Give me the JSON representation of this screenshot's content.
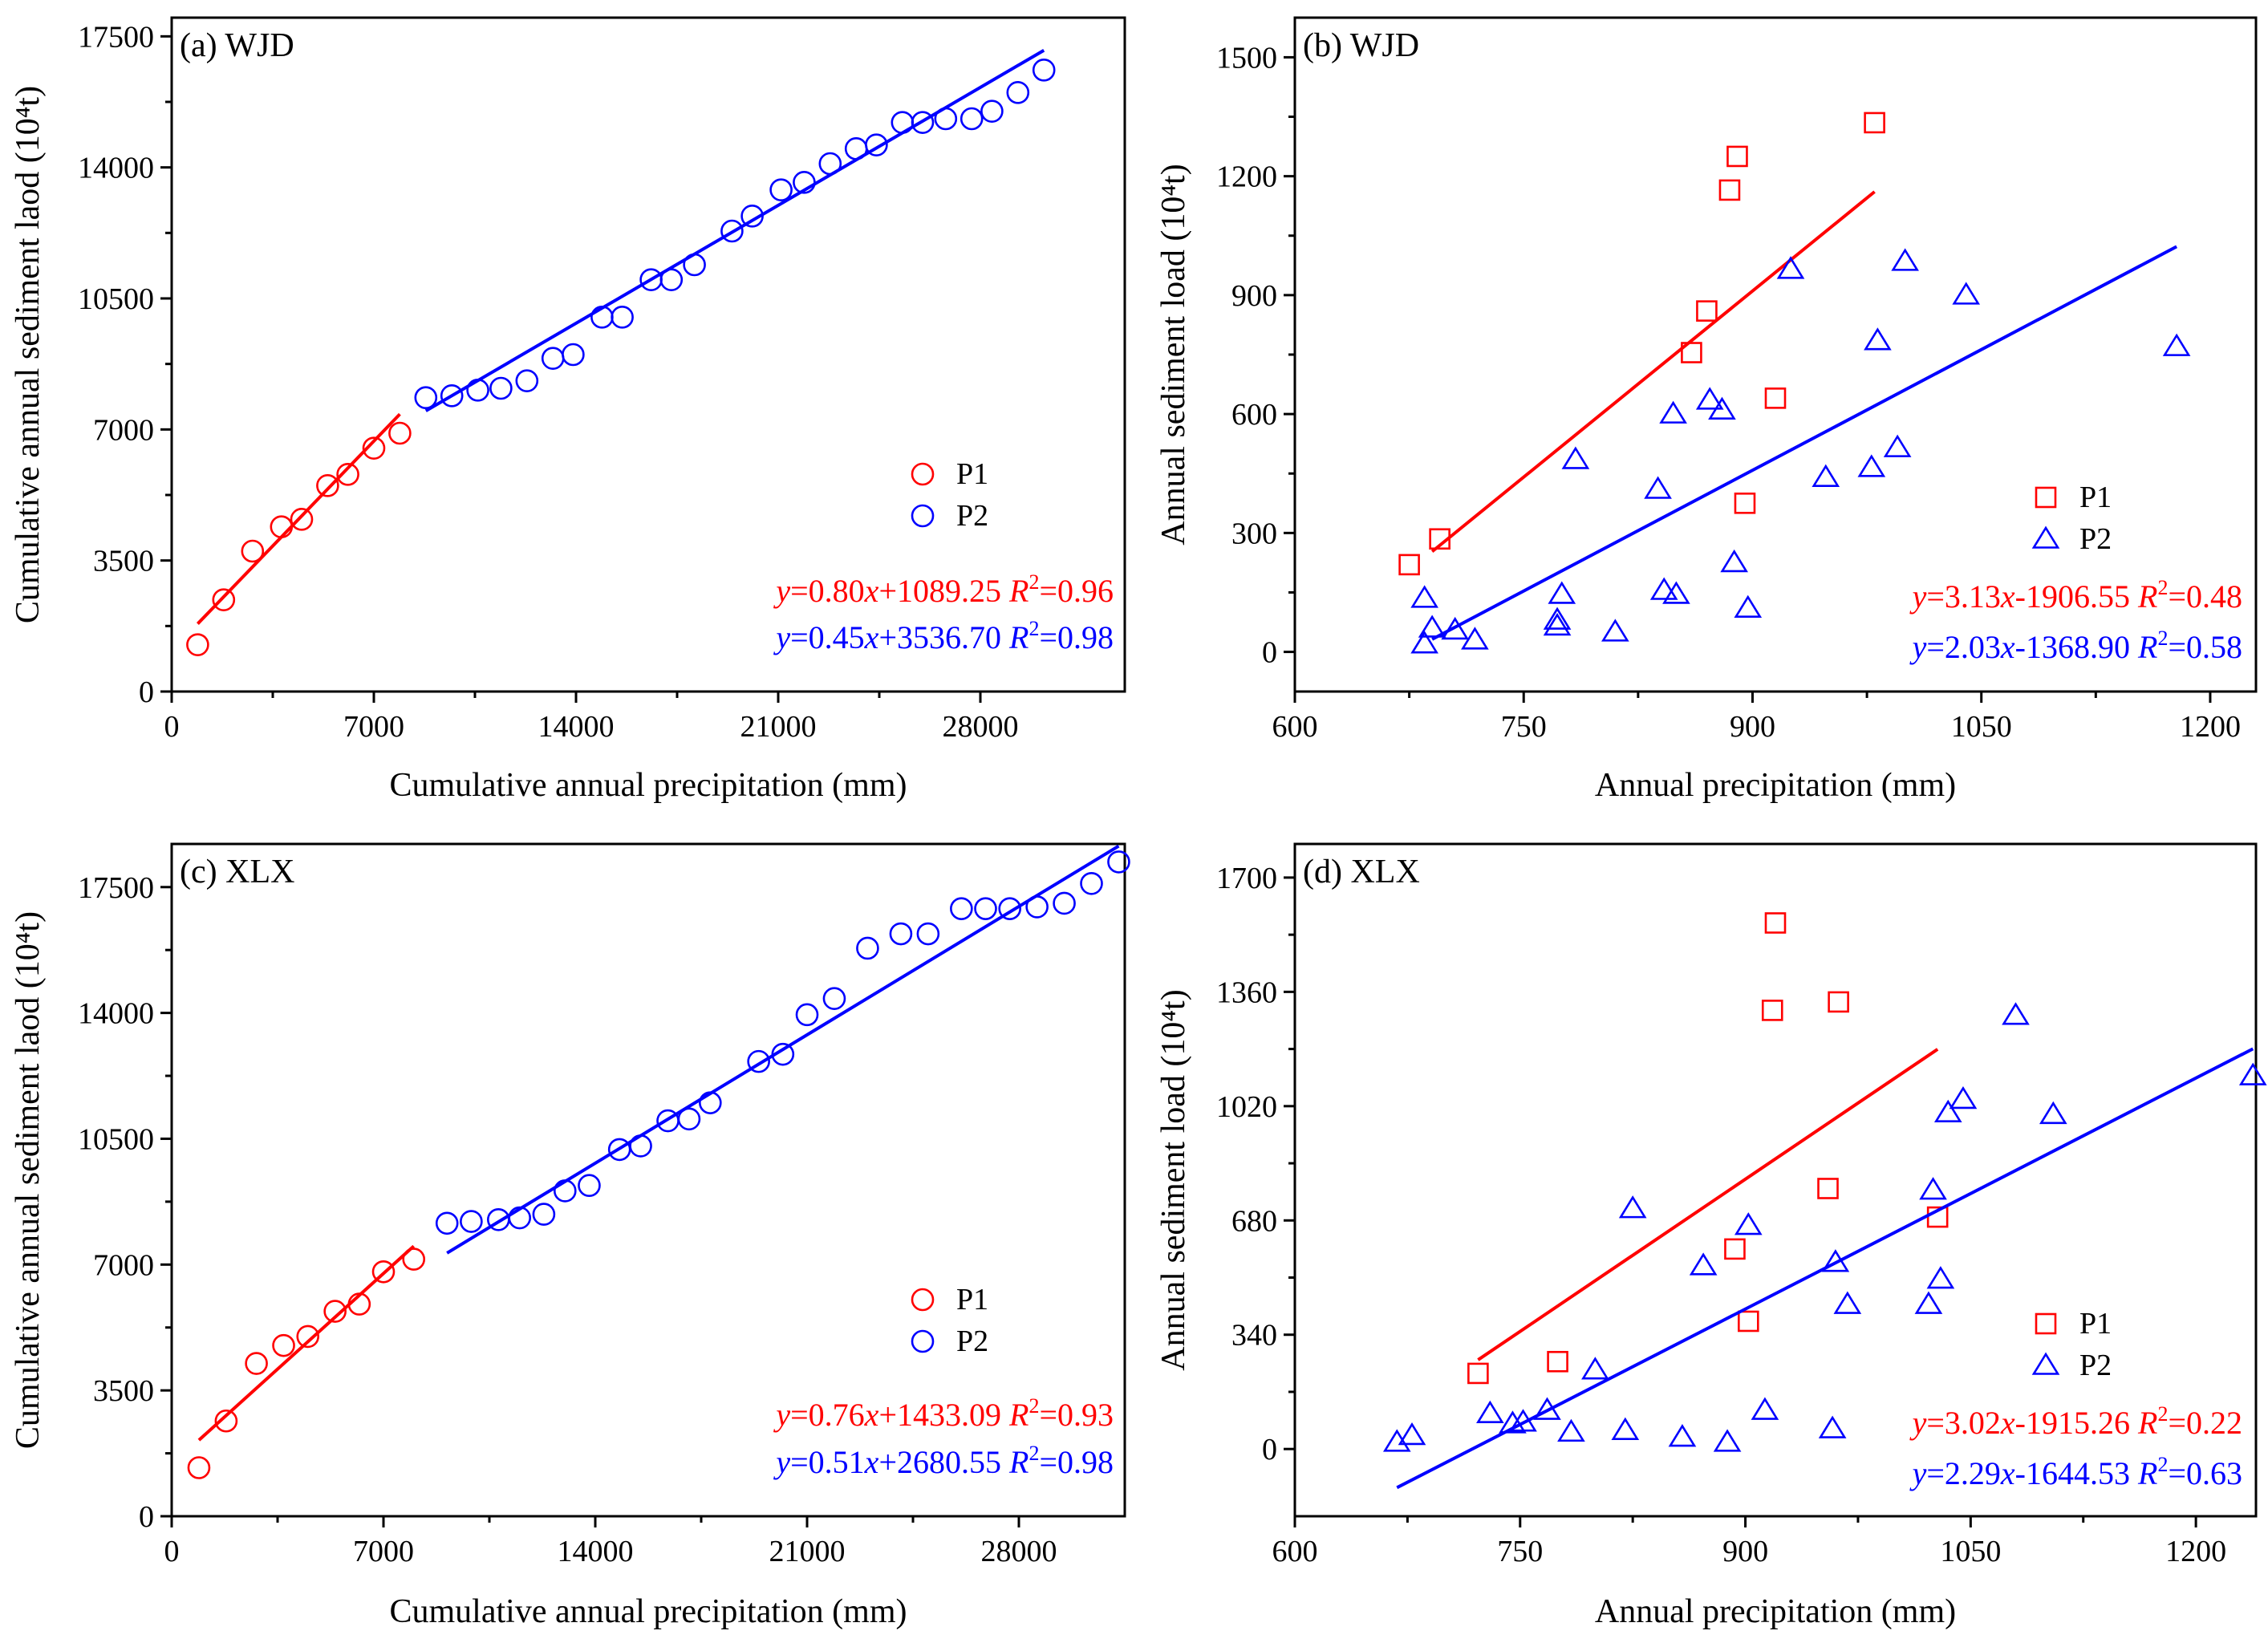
{
  "chart_data": [
    {
      "panel": "(a)",
      "title": "(a) WJD",
      "type": "scatter",
      "xlabel": "Cumulative annual precipitation (mm)",
      "ylabel": "Cumulative annual sediment laod (10⁴t)",
      "xlim": [
        0,
        33000
      ],
      "ylim": [
        0,
        18000
      ],
      "xticks": [
        0,
        7000,
        14000,
        21000,
        28000
      ],
      "yticks": [
        0,
        3500,
        7000,
        10500,
        14000,
        17500
      ],
      "legend": {
        "placement": "right-middle",
        "entries": [
          "P1",
          "P2"
        ]
      },
      "series": [
        {
          "name": "P1",
          "color": "#ff0000",
          "marker": "circle",
          "x": [
            900,
            1800,
            2800,
            3800,
            4500,
            5400,
            6100,
            7000,
            7900
          ],
          "y": [
            1250,
            2450,
            3750,
            4400,
            4600,
            5500,
            5800,
            6500,
            6900
          ],
          "fit": {
            "slope": 0.8,
            "intercept": 1089.25,
            "x_range": [
              900,
              7900
            ],
            "equation_prefix": "y",
            "equation_body": "=0.80",
            "equation_var": "x",
            "equation_rest": "+1089.25 ",
            "r2_label": "R",
            "r2_value": "=0.96"
          }
        },
        {
          "name": "P2",
          "color": "#0000ff",
          "marker": "circle",
          "x": [
            8800,
            9700,
            10600,
            11400,
            12300,
            13200,
            13900,
            14900,
            15600,
            16600,
            17300,
            18100,
            19400,
            20100,
            21100,
            21900,
            22800,
            23700,
            24400,
            25300,
            26000,
            26800,
            27700,
            28400,
            29300,
            30200
          ],
          "y": [
            7850,
            7900,
            8050,
            8100,
            8300,
            8900,
            9000,
            10000,
            10000,
            11000,
            11000,
            11400,
            12300,
            12700,
            13400,
            13600,
            14100,
            14500,
            14600,
            15200,
            15200,
            15300,
            15300,
            15500,
            16000,
            16600
          ],
          "fit": {
            "slope": 0.45,
            "intercept": 3536.7,
            "x_range": [
              8800,
              30200
            ],
            "equation_prefix": "y",
            "equation_body": "=0.45",
            "equation_var": "x",
            "equation_rest": "+3536.70 ",
            "r2_label": "R",
            "r2_value": "=0.98"
          }
        }
      ]
    },
    {
      "panel": "(b)",
      "title": "(b) WJD",
      "type": "scatter",
      "xlabel": "Annual precipitation (mm)",
      "ylabel": "Annual sediment load (10⁴t)",
      "xlim": [
        600,
        1230
      ],
      "ylim": [
        -100,
        1600
      ],
      "xticks": [
        600,
        750,
        900,
        1050,
        1200
      ],
      "yticks": [
        0,
        300,
        600,
        900,
        1200,
        1500
      ],
      "legend": {
        "placement": "right-middle",
        "entries": [
          "P1",
          "P2"
        ]
      },
      "series": [
        {
          "name": "P1",
          "color": "#ff0000",
          "marker": "square",
          "x": [
            675,
            695,
            860,
            870,
            885,
            890,
            915,
            895,
            980
          ],
          "y": [
            220,
            285,
            755,
            860,
            1165,
            1250,
            640,
            375,
            1335
          ],
          "fit": {
            "slope": 3.13,
            "intercept": -1906.55,
            "x_range": [
              690,
              980
            ],
            "equation_prefix": "y",
            "equation_body": "=3.13",
            "equation_var": "x",
            "equation_rest": "-1906.55   ",
            "r2_label": "R",
            "r2_value": "=0.48"
          }
        },
        {
          "name": "P2",
          "color": "#0000ff",
          "marker": "triangle",
          "x": [
            685,
            685,
            690,
            705,
            718,
            772,
            772,
            775,
            784,
            810,
            838,
            842,
            848,
            850,
            872,
            880,
            888,
            897,
            925,
            948,
            978,
            982,
            995,
            1000,
            1040,
            1178
          ],
          "y": [
            20,
            135,
            60,
            55,
            30,
            65,
            80,
            145,
            485,
            50,
            410,
            155,
            600,
            145,
            635,
            610,
            225,
            110,
            965,
            440,
            465,
            785,
            515,
            985,
            900,
            770
          ],
          "fit": {
            "slope": 2.03,
            "intercept": -1368.9,
            "x_range": [
              690,
              1178
            ],
            "equation_prefix": "y",
            "equation_body": "=2.03",
            "equation_var": "x",
            "equation_rest": "-1368.90   ",
            "r2_label": "R",
            "r2_value": "=0.58"
          }
        }
      ]
    },
    {
      "panel": "(c)",
      "title": "(c) XLX",
      "type": "scatter",
      "xlabel": "Cumulative annual precipitation (mm)",
      "ylabel": "Cumulative annual sediment laod (10⁴t)",
      "xlim": [
        0,
        31500
      ],
      "ylim": [
        0,
        18700
      ],
      "xticks": [
        0,
        7000,
        14000,
        21000,
        28000
      ],
      "yticks": [
        0,
        3500,
        7000,
        10500,
        14000,
        17500
      ],
      "legend": {
        "placement": "right-middle",
        "entries": [
          "P1",
          "P2"
        ]
      },
      "series": [
        {
          "name": "P1",
          "color": "#ff0000",
          "marker": "circle",
          "x": [
            900,
            1800,
            2800,
            3700,
            4500,
            5400,
            6200,
            7000,
            8000
          ],
          "y": [
            1350,
            2650,
            4250,
            4750,
            5000,
            5700,
            5900,
            6800,
            7150
          ],
          "fit": {
            "slope": 0.76,
            "intercept": 1433.09,
            "x_range": [
              900,
              8000
            ],
            "equation_prefix": "y",
            "equation_body": "=0.76",
            "equation_var": "x",
            "equation_rest": "+1433.09 ",
            "r2_label": "R",
            "r2_value": "=0.93"
          }
        },
        {
          "name": "P2",
          "color": "#0000ff",
          "marker": "circle",
          "x": [
            9100,
            9900,
            10800,
            11500,
            12300,
            13000,
            13800,
            14800,
            15500,
            16400,
            17100,
            17800,
            19400,
            20200,
            21000,
            21900,
            23000,
            24100,
            25000,
            26100,
            26900,
            27700,
            28600,
            29500,
            30400,
            31300
          ],
          "y": [
            8150,
            8200,
            8250,
            8300,
            8400,
            9050,
            9200,
            10200,
            10300,
            11000,
            11050,
            11500,
            12650,
            12850,
            13950,
            14400,
            15800,
            16200,
            16200,
            16900,
            16900,
            16900,
            16950,
            17050,
            17600,
            18200
          ],
          "fit": {
            "slope": 0.51,
            "intercept": 2680.55,
            "x_range": [
              9100,
              31300
            ],
            "equation_prefix": "y",
            "equation_body": "=0.51",
            "equation_var": "x",
            "equation_rest": "+2680.55 ",
            "r2_label": "R",
            "r2_value": "=0.98"
          }
        }
      ]
    },
    {
      "panel": "(d)",
      "title": "(d) XLX",
      "type": "scatter",
      "xlabel": "Annual precipitation (mm)",
      "ylabel": "Annual sediment load (10⁴t)",
      "xlim": [
        600,
        1240
      ],
      "ylim": [
        -200,
        1800
      ],
      "xticks": [
        600,
        750,
        900,
        1050,
        1200
      ],
      "yticks": [
        0,
        340,
        680,
        1020,
        1360,
        1700
      ],
      "legend": {
        "placement": "right-middle",
        "entries": [
          "P1",
          "P2"
        ]
      },
      "series": [
        {
          "name": "P1",
          "color": "#ff0000",
          "marker": "square",
          "x": [
            722,
            775,
            893,
            902,
            918,
            920,
            955,
            962,
            1028
          ],
          "y": [
            225,
            260,
            595,
            380,
            1305,
            1565,
            775,
            1330,
            690
          ],
          "fit": {
            "slope": 3.02,
            "intercept": -1915.26,
            "x_range": [
              722,
              1028
            ],
            "equation_prefix": "y",
            "equation_body": "=3.02",
            "equation_var": "x",
            "equation_rest": "-1915.26   ",
            "r2_label": "R",
            "r2_value": "=0.22"
          }
        },
        {
          "name": "P2",
          "color": "#0000ff",
          "marker": "triangle",
          "x": [
            668,
            678,
            730,
            745,
            752,
            768,
            784,
            800,
            820,
            825,
            858,
            872,
            888,
            902,
            913,
            958,
            960,
            968,
            1022,
            1025,
            1030,
            1035,
            1045,
            1080,
            1105,
            1238
          ],
          "y": [
            20,
            40,
            105,
            75,
            80,
            115,
            50,
            235,
            55,
            715,
            35,
            545,
            20,
            665,
            115,
            60,
            555,
            430,
            430,
            770,
            505,
            1000,
            1040,
            1290,
            995,
            1110
          ],
          "fit": {
            "slope": 2.29,
            "intercept": -1644.53,
            "x_range": [
              668,
              1238
            ],
            "equation_prefix": "y",
            "equation_body": "=2.29",
            "equation_var": "x",
            "equation_rest": "-1644.53   ",
            "r2_label": "R",
            "r2_value": "=0.63"
          }
        }
      ]
    }
  ]
}
